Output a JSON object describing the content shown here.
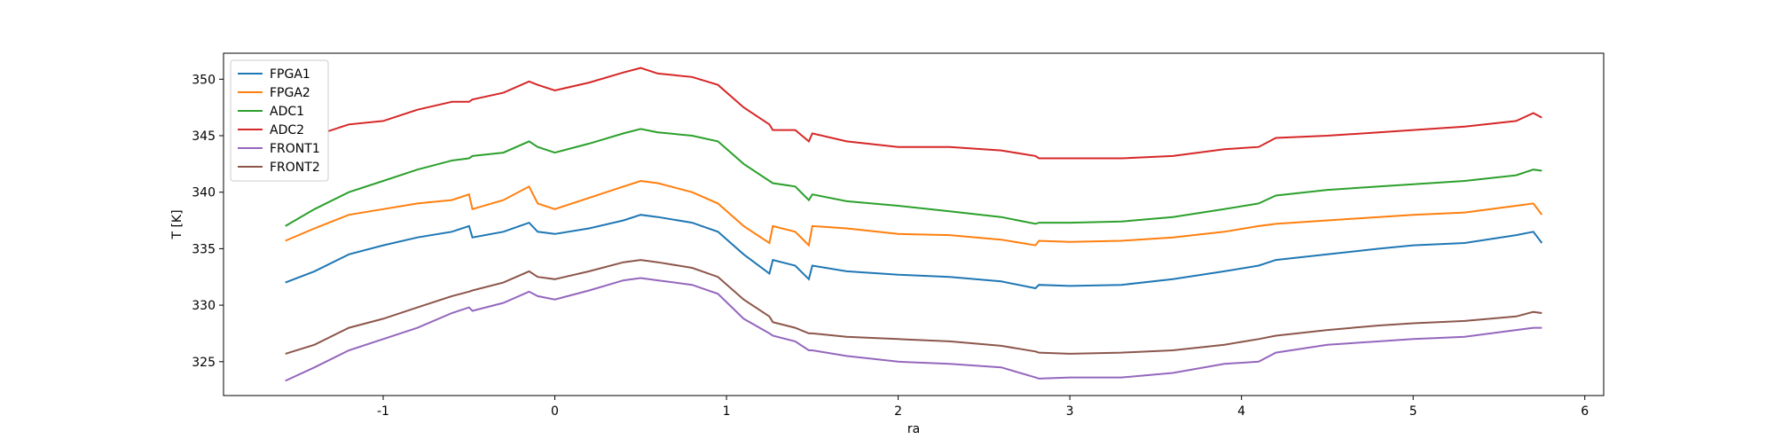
{
  "chart_data": {
    "type": "line",
    "xlabel": "ra",
    "ylabel": "T [K]",
    "x": [
      -1.57,
      -1.4,
      -1.2,
      -1.0,
      -0.8,
      -0.6,
      -0.5,
      -0.48,
      -0.3,
      -0.15,
      -0.1,
      0,
      0.2,
      0.4,
      0.5,
      0.6,
      0.8,
      0.95,
      1.1,
      1.25,
      1.27,
      1.4,
      1.48,
      1.5,
      1.7,
      2.0,
      2.3,
      2.6,
      2.8,
      2.82,
      3.0,
      3.3,
      3.6,
      3.9,
      4.1,
      4.2,
      4.5,
      4.8,
      5.0,
      5.3,
      5.6,
      5.7,
      5.75
    ],
    "series": [
      {
        "name": "FPGA1",
        "color": "#1f77b4",
        "values": [
          332,
          333,
          334.5,
          335.3,
          336,
          336.5,
          337,
          336,
          336.5,
          337.3,
          336.5,
          336.3,
          336.8,
          337.5,
          338,
          337.8,
          337.3,
          336.5,
          334.5,
          332.8,
          334,
          333.5,
          332.3,
          333.5,
          333,
          332.7,
          332.5,
          332.1,
          331.5,
          331.8,
          331.7,
          331.8,
          332.3,
          333,
          333.5,
          334,
          334.5,
          335,
          335.3,
          335.5,
          336.2,
          336.5,
          335.5
        ]
      },
      {
        "name": "FPGA2",
        "color": "#ff7f0e",
        "values": [
          335.7,
          336.8,
          338,
          338.5,
          339,
          339.3,
          339.8,
          338.5,
          339.3,
          340.5,
          339,
          338.5,
          339.5,
          340.5,
          341,
          340.8,
          340,
          339,
          337,
          335.5,
          337,
          336.5,
          335.3,
          337,
          336.8,
          336.3,
          336.2,
          335.8,
          335.3,
          335.7,
          335.6,
          335.7,
          336,
          336.5,
          337,
          337.2,
          337.5,
          337.8,
          338,
          338.2,
          338.8,
          339,
          338
        ]
      },
      {
        "name": "ADC1",
        "color": "#2ca02c",
        "values": [
          337,
          338.5,
          340,
          341,
          342,
          342.8,
          343,
          343.2,
          343.5,
          344.5,
          344,
          343.5,
          344.3,
          345.2,
          345.6,
          345.3,
          345,
          344.5,
          342.5,
          341,
          340.8,
          340.5,
          339.3,
          339.8,
          339.2,
          338.8,
          338.3,
          337.8,
          337.2,
          337.3,
          337.3,
          337.4,
          337.8,
          338.5,
          339,
          339.7,
          340.2,
          340.5,
          340.7,
          341,
          341.5,
          342,
          341.9
        ]
      },
      {
        "name": "ADC2",
        "color": "#d62728",
        "values": [
          343.5,
          345,
          346,
          346.3,
          347.3,
          348,
          348,
          348.2,
          348.8,
          349.8,
          349.5,
          349,
          349.7,
          350.6,
          351,
          350.5,
          350.2,
          349.5,
          347.5,
          346,
          345.5,
          345.5,
          344.5,
          345.2,
          344.5,
          344,
          344,
          343.7,
          343.2,
          343,
          343,
          343,
          343.2,
          343.8,
          344,
          344.8,
          345,
          345.3,
          345.5,
          345.8,
          346.3,
          347,
          346.6
        ]
      },
      {
        "name": "FRONT1",
        "color": "#9467bd",
        "values": [
          323.3,
          324.5,
          326,
          327,
          328,
          329.3,
          329.8,
          329.5,
          330.2,
          331.2,
          330.8,
          330.5,
          331.3,
          332.2,
          332.4,
          332.2,
          331.8,
          331,
          328.8,
          327.5,
          327.3,
          326.8,
          326,
          326,
          325.5,
          325,
          324.8,
          324.5,
          323.6,
          323.5,
          323.6,
          323.6,
          324,
          324.8,
          325,
          325.8,
          326.5,
          326.8,
          327,
          327.2,
          327.8,
          328,
          328
        ]
      },
      {
        "name": "FRONT2",
        "color": "#8c564b",
        "values": [
          325.7,
          326.5,
          328,
          328.8,
          329.8,
          330.8,
          331.2,
          331.3,
          332,
          333,
          332.5,
          332.3,
          333,
          333.8,
          334,
          333.8,
          333.3,
          332.5,
          330.5,
          329,
          328.5,
          328,
          327.5,
          327.5,
          327.2,
          327,
          326.8,
          326.4,
          325.9,
          325.8,
          325.7,
          325.8,
          326,
          326.5,
          327,
          327.3,
          327.8,
          328.2,
          328.4,
          328.6,
          329,
          329.4,
          329.3
        ]
      }
    ],
    "xlim": [
      -1.93,
      6.11
    ],
    "xticks": [
      -1,
      0,
      1,
      2,
      3,
      4,
      5,
      6
    ],
    "ylim": [
      322,
      352.3
    ],
    "yticks": [
      325,
      330,
      335,
      340,
      345,
      350
    ],
    "legend": "upper left"
  }
}
